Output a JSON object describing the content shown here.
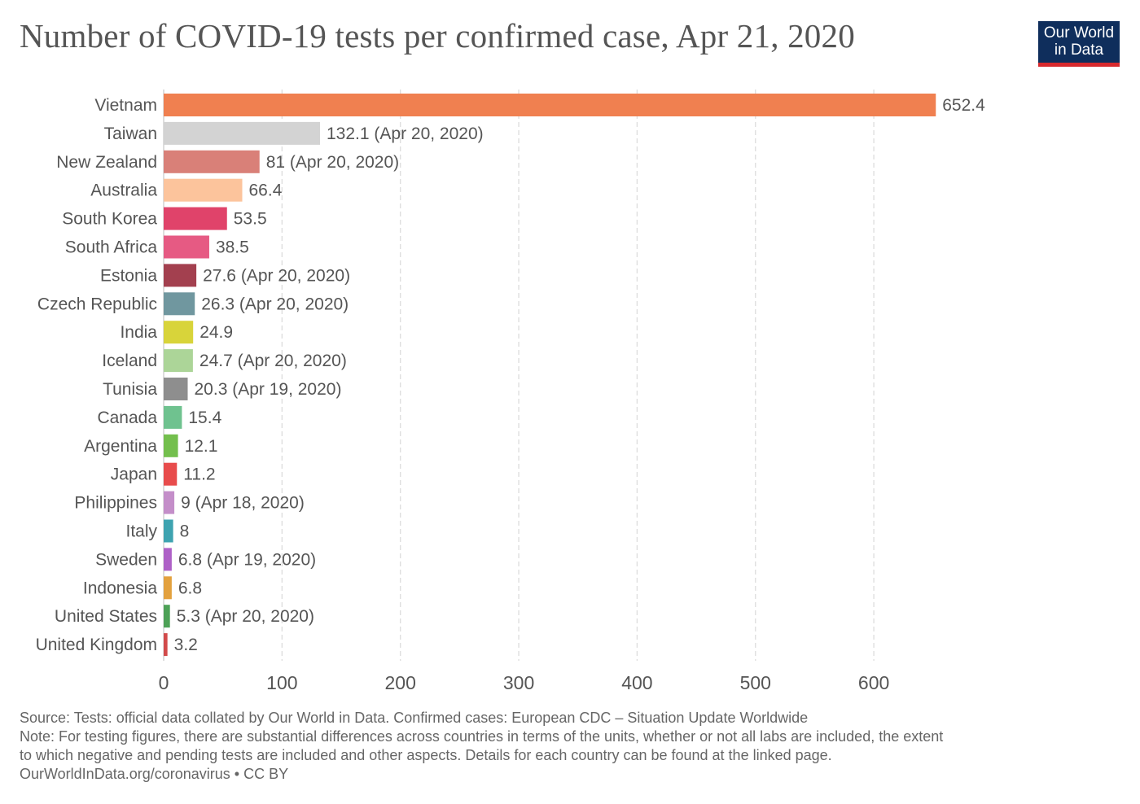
{
  "title": "Number of COVID-19 tests per confirmed case, Apr 21, 2020",
  "logo": {
    "line1": "Our World",
    "line2": "in Data"
  },
  "footer": {
    "source": "Source: Tests: official data collated by Our World in Data. Confirmed cases: European CDC – Situation Update Worldwide",
    "note1": "Note: For testing figures, there are substantial differences across countries in terms of the units, whether or not all labs are included, the extent",
    "note2": "to which negative and pending tests are included and other aspects. Details for each country can be found at the linked page.",
    "credit": "OurWorldInData.org/coronavirus • CC BY"
  },
  "chart_data": {
    "type": "bar",
    "orientation": "horizontal",
    "title": "Number of COVID-19 tests per confirmed case, Apr 21, 2020",
    "xlim": [
      0,
      652.4
    ],
    "xticks": [
      0,
      100,
      200,
      300,
      400,
      500,
      600
    ],
    "grid": "vertical dashed",
    "categories": [
      "Vietnam",
      "Taiwan",
      "New Zealand",
      "Australia",
      "South Korea",
      "South Africa",
      "Estonia",
      "Czech Republic",
      "India",
      "Iceland",
      "Tunisia",
      "Canada",
      "Argentina",
      "Japan",
      "Philippines",
      "Italy",
      "Sweden",
      "Indonesia",
      "United States",
      "United Kingdom"
    ],
    "values": [
      652.4,
      132.1,
      81,
      66.4,
      53.5,
      38.5,
      27.6,
      26.3,
      24.9,
      24.7,
      20.3,
      15.4,
      12.1,
      11.2,
      9,
      8,
      6.8,
      6.8,
      5.3,
      3.2
    ],
    "value_labels": [
      "652.4",
      "132.1 (Apr 20, 2020)",
      "81 (Apr 20, 2020)",
      "66.4",
      "53.5",
      "38.5",
      "27.6 (Apr 20, 2020)",
      "26.3 (Apr 20, 2020)",
      "24.9",
      "24.7 (Apr 20, 2020)",
      "20.3 (Apr 19, 2020)",
      "15.4",
      "12.1",
      "11.2",
      "9 (Apr 18, 2020)",
      "8",
      "6.8 (Apr 19, 2020)",
      "6.8",
      "5.3 (Apr 20, 2020)",
      "3.2"
    ],
    "colors": [
      "#f08050",
      "#d3d3d3",
      "#d98078",
      "#fcc49c",
      "#e0436a",
      "#e65a83",
      "#a3404f",
      "#70979f",
      "#d8d43a",
      "#acd598",
      "#8e8e8e",
      "#6fc28f",
      "#73bf4d",
      "#e84c4c",
      "#c48ec9",
      "#3ea3b0",
      "#ae61c7",
      "#e3a13e",
      "#4da157",
      "#d24a4a"
    ]
  }
}
